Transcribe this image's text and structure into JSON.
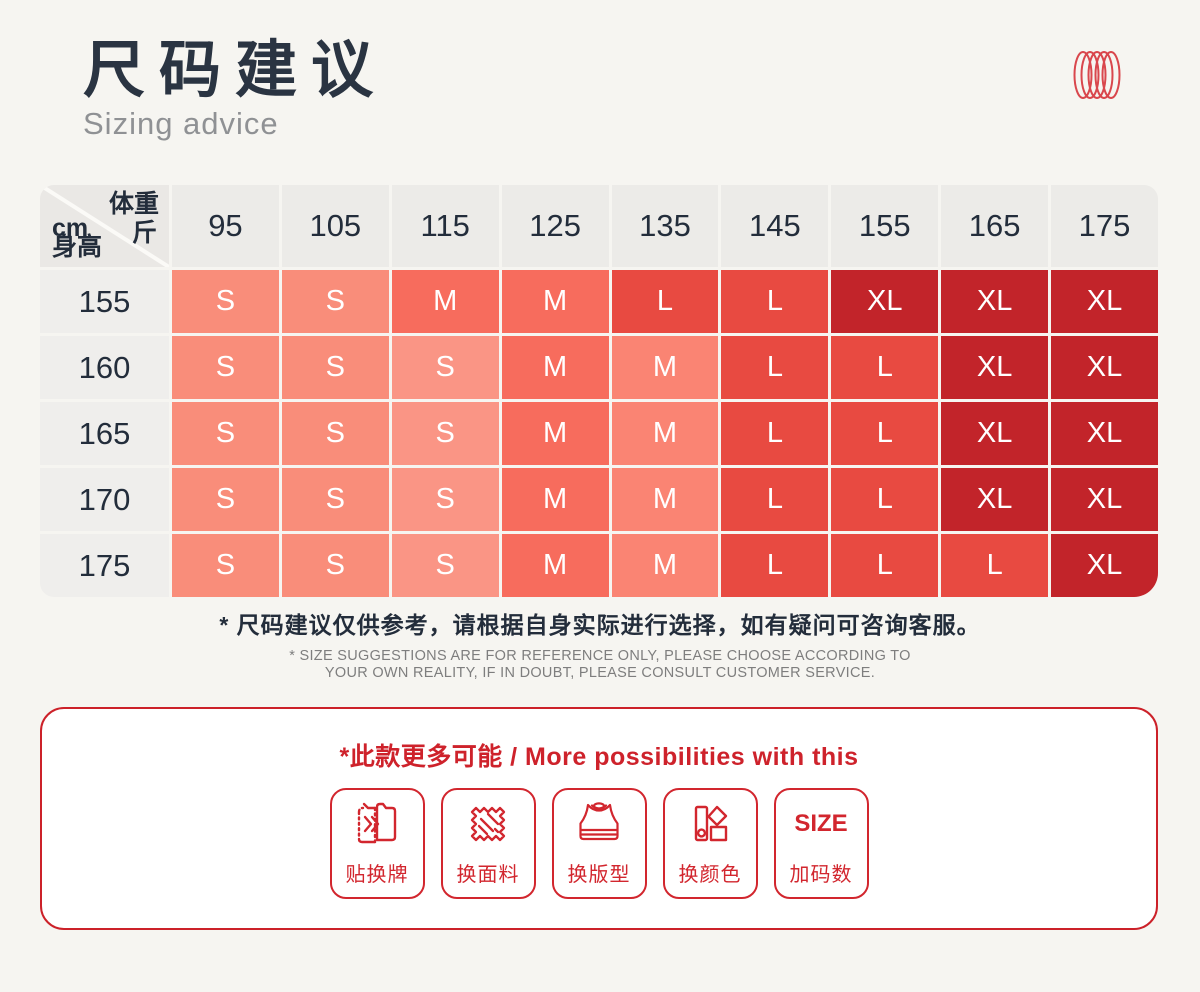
{
  "header": {
    "title_cn": "尺码建议",
    "title_en": "Sizing advice"
  },
  "icons": {
    "top_right": "spring-coil-icon"
  },
  "size_table": {
    "corner": {
      "weight_label": "体重",
      "weight_unit": "斤",
      "height_unit": "cm",
      "height_label": "身高"
    },
    "weight_columns": [
      "95",
      "105",
      "115",
      "125",
      "135",
      "145",
      "155",
      "165",
      "175"
    ],
    "rows": [
      {
        "height": "155",
        "cells": [
          {
            "label": "S",
            "shade": "s"
          },
          {
            "label": "S",
            "shade": "s"
          },
          {
            "label": "M",
            "shade": "m"
          },
          {
            "label": "M",
            "shade": "m"
          },
          {
            "label": "L",
            "shade": "l"
          },
          {
            "label": "L",
            "shade": "l"
          },
          {
            "label": "XL",
            "shade": "xl"
          },
          {
            "label": "XL",
            "shade": "xl"
          },
          {
            "label": "XL",
            "shade": "xl"
          }
        ]
      },
      {
        "height": "160",
        "cells": [
          {
            "label": "S",
            "shade": "s"
          },
          {
            "label": "S",
            "shade": "s"
          },
          {
            "label": "S",
            "shade": "sl"
          },
          {
            "label": "M",
            "shade": "m"
          },
          {
            "label": "M",
            "shade": "ml"
          },
          {
            "label": "L",
            "shade": "l"
          },
          {
            "label": "L",
            "shade": "l"
          },
          {
            "label": "XL",
            "shade": "xl"
          },
          {
            "label": "XL",
            "shade": "xl"
          }
        ]
      },
      {
        "height": "165",
        "cells": [
          {
            "label": "S",
            "shade": "s"
          },
          {
            "label": "S",
            "shade": "s"
          },
          {
            "label": "S",
            "shade": "sl"
          },
          {
            "label": "M",
            "shade": "m"
          },
          {
            "label": "M",
            "shade": "ml"
          },
          {
            "label": "L",
            "shade": "l"
          },
          {
            "label": "L",
            "shade": "l"
          },
          {
            "label": "XL",
            "shade": "xl"
          },
          {
            "label": "XL",
            "shade": "xl"
          }
        ]
      },
      {
        "height": "170",
        "cells": [
          {
            "label": "S",
            "shade": "s"
          },
          {
            "label": "S",
            "shade": "s"
          },
          {
            "label": "S",
            "shade": "sl"
          },
          {
            "label": "M",
            "shade": "m"
          },
          {
            "label": "M",
            "shade": "ml"
          },
          {
            "label": "L",
            "shade": "l"
          },
          {
            "label": "L",
            "shade": "l"
          },
          {
            "label": "XL",
            "shade": "xl"
          },
          {
            "label": "XL",
            "shade": "xl"
          }
        ]
      },
      {
        "height": "175",
        "cells": [
          {
            "label": "S",
            "shade": "s"
          },
          {
            "label": "S",
            "shade": "s"
          },
          {
            "label": "S",
            "shade": "sl"
          },
          {
            "label": "M",
            "shade": "m"
          },
          {
            "label": "M",
            "shade": "ml"
          },
          {
            "label": "L",
            "shade": "l"
          },
          {
            "label": "L",
            "shade": "l"
          },
          {
            "label": "L",
            "shade": "l"
          },
          {
            "label": "XL",
            "shade": "xl"
          }
        ]
      }
    ],
    "palette": {
      "s": "#F98D7A",
      "sl": "#FA9585",
      "m": "#F76C5D",
      "ml": "#FA8473",
      "l": "#E84A41",
      "xl": "#C2242A"
    }
  },
  "notes": {
    "cn": "* 尺码建议仅供参考，请根据自身实际进行选择，如有疑问可咨询客服。",
    "en_line1": "* SIZE SUGGESTIONS ARE FOR REFERENCE ONLY, PLEASE CHOOSE ACCORDING TO",
    "en_line2": "YOUR OWN REALITY, IF IN DOUBT, PLEASE CONSULT CUSTOMER SERVICE."
  },
  "possibilities": {
    "title": "*此款更多可能 / More possibilities with this",
    "items": [
      {
        "label": "贴换牌",
        "icon": "tag-swap-icon"
      },
      {
        "label": "换面料",
        "icon": "fabric-swap-icon"
      },
      {
        "label": "换版型",
        "icon": "bra-pattern-icon"
      },
      {
        "label": "换颜色",
        "icon": "color-swatch-icon"
      },
      {
        "label": "加码数",
        "icon": "size-text-icon",
        "icon_text": "SIZE"
      }
    ]
  },
  "colors": {
    "page_bg": "#F6F5F1",
    "title": "#2A3442",
    "subtitle": "#8F9194",
    "header_bg": "#ECEBE8",
    "height_col_bg": "#EFEEEC",
    "table_text": "#232D3B",
    "note_en": "#7E7E7E",
    "accent_red": "#CC2129"
  }
}
